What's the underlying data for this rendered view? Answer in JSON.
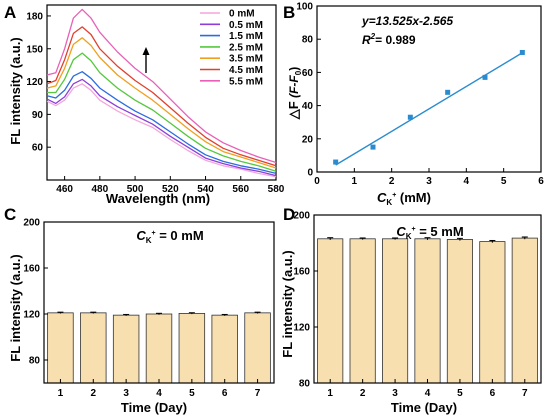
{
  "chart_data": [
    {
      "panel": "A",
      "type": "line",
      "xlabel": "Wavelength (nm)",
      "ylabel": "FL intensity (a.u.)",
      "xlim": [
        450,
        580
      ],
      "ylim": [
        30,
        190
      ],
      "xticks": [
        460,
        480,
        500,
        520,
        540,
        560,
        580
      ],
      "yticks": [
        60,
        90,
        120,
        150,
        180
      ],
      "legend_position": "top-right",
      "annotation": "up-arrow",
      "x": [
        450,
        455,
        460,
        465,
        470,
        475,
        480,
        490,
        500,
        510,
        520,
        530,
        540,
        550,
        560,
        570,
        580
      ],
      "series": [
        {
          "name": "0 mM",
          "color": "#f4a6de",
          "values": [
            102,
            98,
            103,
            114,
            118,
            112,
            103,
            93,
            85,
            78,
            67,
            57,
            48,
            43,
            40,
            36,
            33
          ]
        },
        {
          "name": "0.5 mM",
          "color": "#8c3fd8",
          "values": [
            104,
            100,
            106,
            118,
            122,
            116,
            107,
            97,
            89,
            81,
            70,
            60,
            50,
            45,
            41,
            38,
            34
          ]
        },
        {
          "name": "1.5 mM",
          "color": "#2a6de0",
          "values": [
            107,
            105,
            112,
            125,
            129,
            123,
            114,
            103,
            93,
            85,
            74,
            63,
            53,
            47,
            43,
            40,
            36
          ]
        },
        {
          "name": "2.5 mM",
          "color": "#55c83c",
          "values": [
            110,
            110,
            122,
            140,
            146,
            139,
            128,
            114,
            103,
            94,
            82,
            70,
            59,
            52,
            47,
            43,
            38
          ]
        },
        {
          "name": "3.5 mM",
          "color": "#f0a020",
          "values": [
            114,
            116,
            132,
            154,
            160,
            153,
            142,
            126,
            114,
            103,
            90,
            77,
            65,
            56,
            51,
            46,
            41
          ]
        },
        {
          "name": "4.5 mM",
          "color": "#e0402e",
          "values": [
            118,
            121,
            140,
            164,
            170,
            163,
            150,
            134,
            121,
            110,
            96,
            82,
            69,
            59,
            53,
            48,
            43
          ]
        },
        {
          "name": "5.5 mM",
          "color": "#e860b8",
          "values": [
            126,
            128,
            150,
            178,
            186,
            178,
            165,
            147,
            132,
            120,
            104,
            88,
            74,
            64,
            57,
            51,
            46
          ]
        }
      ]
    },
    {
      "panel": "B",
      "type": "scatter",
      "xlabel": "C_K+ (mM)",
      "ylabel": "ΔF (F-F0)",
      "xlim": [
        0,
        6
      ],
      "ylim": [
        0,
        100
      ],
      "xticks": [
        0,
        1,
        2,
        3,
        4,
        5,
        6
      ],
      "yticks": [
        0,
        20,
        40,
        60,
        80,
        100
      ],
      "equation": "y=13.525x-2.565",
      "r2": "R² = 0.989",
      "fit": {
        "slope": 13.525,
        "intercept": -2.565
      },
      "marker_color": "#2a8ccf",
      "line_color": "#2a8ccf",
      "x": [
        0.5,
        1.5,
        2.5,
        3.5,
        4.5,
        5.5
      ],
      "y": [
        6,
        15,
        33,
        48,
        57,
        72
      ]
    },
    {
      "panel": "C",
      "type": "bar",
      "title": "C_K+ = 0 mM",
      "xlabel": "Time (Day)",
      "ylabel": "FL intensity (a.u.)",
      "ylim": [
        60,
        200
      ],
      "yticks": [
        80,
        120,
        160,
        200
      ],
      "bar_color": "#f8dfb0",
      "categories": [
        "1",
        "2",
        "3",
        "4",
        "5",
        "6",
        "7"
      ],
      "values": [
        121,
        121,
        119,
        120,
        120.5,
        119,
        121
      ],
      "errors": [
        0.6,
        0.6,
        0.6,
        0.6,
        0.6,
        0.6,
        0.6
      ]
    },
    {
      "panel": "D",
      "type": "bar",
      "title": "C_K+ = 5 mM",
      "xlabel": "Time (Day)",
      "ylabel": "FL intensity (a.u.)",
      "ylim": [
        80,
        200
      ],
      "yticks": [
        80,
        120,
        160,
        200
      ],
      "bar_color": "#f8dfb0",
      "categories": [
        "1",
        "2",
        "3",
        "4",
        "5",
        "6",
        "7"
      ],
      "values": [
        183,
        183,
        183,
        183,
        182.5,
        181,
        183.5
      ],
      "errors": [
        0.8,
        0.6,
        0.6,
        0.8,
        0.8,
        0.8,
        0.8
      ]
    }
  ],
  "labels": {
    "panel_a": "A",
    "panel_b": "B",
    "panel_c": "C",
    "panel_d": "D",
    "a_xlabel": "Wavelength (nm)",
    "a_ylabel": "FL intensity (a.u.)",
    "b_xlabel_pre": "C",
    "b_xlabel_sub": "K",
    "b_xlabel_sup": "+",
    "b_xlabel_post": " (mM)",
    "b_ylabel_main": "△F",
    "b_ylabel_paren": " (F-F",
    "b_ylabel_sub": "0",
    "b_ylabel_close": ")",
    "b_eq": "y=13.525x-2.565",
    "b_r2_pre": "R",
    "b_r2_sup": "2",
    "b_r2_post": "= 0.989",
    "c_title_pre": "C",
    "c_title_sub": "K",
    "c_title_sup": "+",
    "c_title_post": " = 0 mM",
    "d_title_pre": "C",
    "d_title_sub": "K",
    "d_title_sup": "+",
    "d_title_post": " = 5 mM",
    "cd_xlabel": "Time (Day)",
    "cd_ylabel": "FL intensity (a.u.)"
  }
}
